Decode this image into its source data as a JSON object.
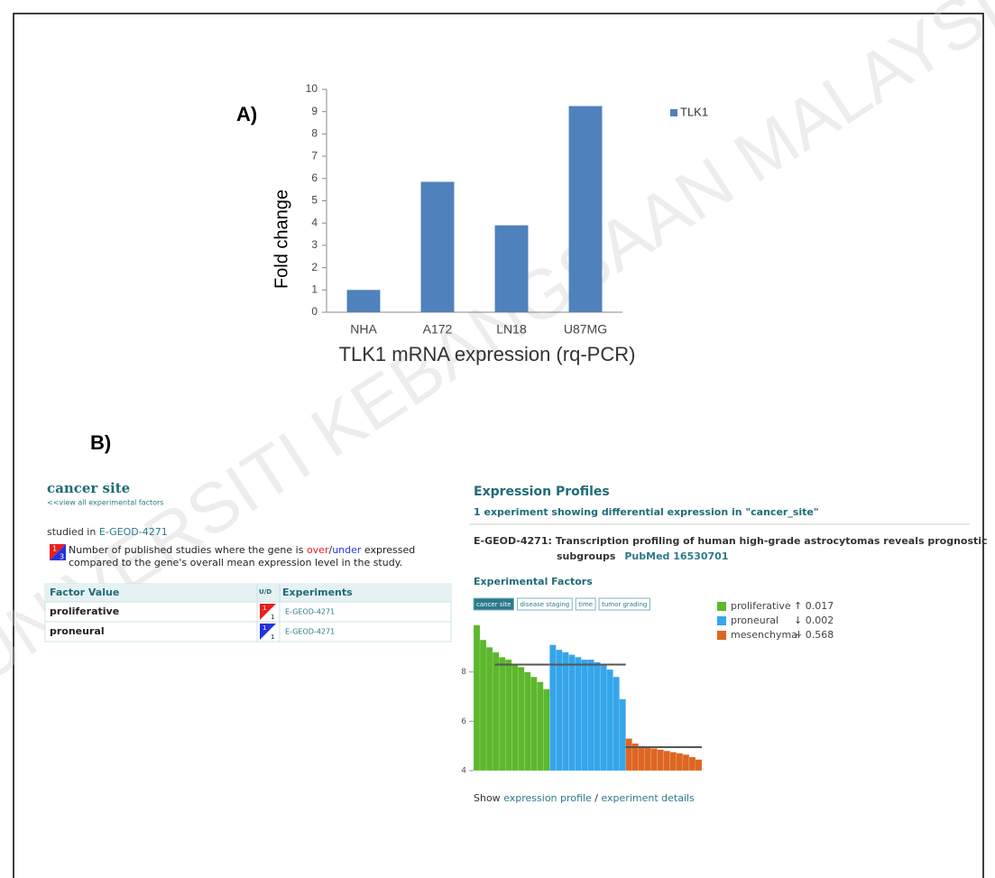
{
  "watermark": "UNIVERSITI KEBANGSAAN MALAYSIA",
  "chart_data": [
    {
      "type": "bar",
      "panel_label": "A)",
      "ylabel": "Fold change",
      "xlabel": "TLK1 mRNA expression (rq-PCR)",
      "categories": [
        "NHA",
        "A172",
        "LN18",
        "U87MG"
      ],
      "series": [
        {
          "name": "TLK1",
          "color": "#4f81bd",
          "values": [
            1,
            5.85,
            3.9,
            9.25
          ]
        }
      ],
      "ylim": [
        0,
        10
      ],
      "yticks": [
        0,
        1,
        2,
        3,
        4,
        5,
        6,
        7,
        8,
        9,
        10
      ],
      "grid": false,
      "legend": "right"
    },
    {
      "type": "profile",
      "ylim": [
        4,
        10
      ],
      "yticks": [
        4,
        6,
        8
      ],
      "legend": "right",
      "series": [
        {
          "name": "proliferative",
          "stat": "↑ 0.017",
          "color": "#5cb82c",
          "mean": 8.3,
          "values": [
            9.9,
            9.3,
            9.0,
            8.8,
            8.6,
            8.5,
            8.3,
            8.2,
            8.0,
            7.8,
            7.6,
            7.3
          ]
        },
        {
          "name": "proneural",
          "stat": "↓ 0.002",
          "color": "#35a6ea",
          "mean": 8.3,
          "values": [
            9.1,
            8.9,
            8.8,
            8.7,
            8.6,
            8.5,
            8.5,
            8.4,
            8.3,
            8.1,
            7.8,
            6.9
          ]
        },
        {
          "name": "mesenchymal",
          "stat": "~ 0.568",
          "color": "#dd6622",
          "mean": 4.95,
          "values": [
            5.3,
            5.1,
            5.0,
            4.95,
            4.9,
            4.85,
            4.8,
            4.75,
            4.7,
            4.65,
            4.55,
            4.45
          ]
        }
      ]
    }
  ],
  "panel_b": {
    "label": "B)",
    "factor": "cancer site",
    "view_all": "<<view all experimental factors",
    "studied_in": "studied in ",
    "studied_link": "E-GEOD-4271",
    "icon": {
      "up": 1,
      "down": 3
    },
    "note": [
      "Number of published studies where the gene is ",
      "over",
      "/",
      "under",
      " expressed",
      "compared to the gene's overall mean expression level in the study."
    ],
    "table": {
      "header": [
        "Factor Value",
        "U/D",
        "Experiments"
      ],
      "rows": [
        {
          "factor": "proliferative",
          "up": 1,
          "down": 1,
          "experiment": "E-GEOD-4271"
        },
        {
          "factor": "proneural",
          "up": 1,
          "down": 1,
          "experiment": "E-GEOD-4271"
        }
      ]
    }
  },
  "profiles": {
    "title": "Expression Profiles",
    "summary": "1 experiment showing differential expression in \"cancer_site\"",
    "experiment_title": [
      "E-GEOD-4271: Transcription profiling of human high-grade astrocytomas reveals prognostic",
      "subgroups"
    ],
    "pubmed": "PubMed 16530701",
    "factors_title": "Experimental Factors",
    "factors": [
      "cancer site",
      "disease staging",
      "time",
      "tumor grading"
    ],
    "footer": [
      "Show ",
      "expression profile",
      " / ",
      "experiment details"
    ]
  }
}
